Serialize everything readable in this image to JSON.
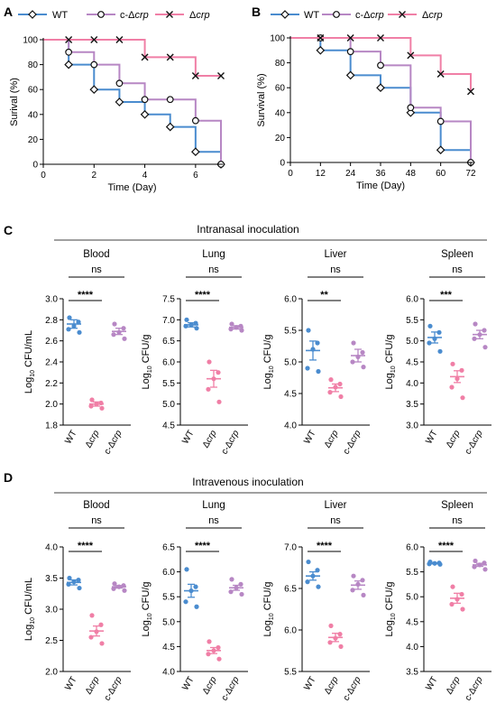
{
  "colors": {
    "WT": "#4a8ccf",
    "comp": "#b787c4",
    "crp": "#f07fa6"
  },
  "legend": {
    "wt": "WT",
    "comp": "c-Δ",
    "crp": "Δ",
    "crp_italic": "crp"
  },
  "panel_labels": {
    "A": "A",
    "B": "B",
    "C": "C",
    "D": "D"
  },
  "sections": {
    "C": "Intranasal inoculation",
    "D": "Intravenous inoculation"
  },
  "strains": {
    "wt": "WT",
    "crp_delta": "Δ",
    "comp_prefix": "c-Δ",
    "crp_italic": "crp"
  },
  "log_label": {
    "prefix": "Log",
    "sub": "10",
    "ml": " CFU/mL",
    "g": " CFU/g"
  },
  "chart_data": [
    {
      "id": "A",
      "type": "line",
      "step": true,
      "xlabel": "Time (Day)",
      "ylabel": "Surival (%)",
      "xlim": [
        0,
        7
      ],
      "ylim": [
        0,
        100
      ],
      "xticks": [
        0,
        2,
        4,
        6
      ],
      "yticks": [
        0,
        20,
        40,
        60,
        80,
        100
      ],
      "legend_position": "top",
      "series": [
        {
          "name": "WT",
          "color": "#4a8ccf",
          "marker": "diamond",
          "points": [
            [
              0,
              100
            ],
            [
              1,
              80
            ],
            [
              2,
              60
            ],
            [
              3,
              50
            ],
            [
              4,
              40
            ],
            [
              5,
              30
            ],
            [
              6,
              10
            ],
            [
              7,
              0
            ]
          ]
        },
        {
          "name": "c-Δcrp",
          "color": "#b787c4",
          "marker": "circle",
          "points": [
            [
              0,
              100
            ],
            [
              1,
              90
            ],
            [
              2,
              80
            ],
            [
              3,
              65
            ],
            [
              4,
              52
            ],
            [
              5,
              52
            ],
            [
              6,
              35
            ],
            [
              7,
              0
            ]
          ]
        },
        {
          "name": "Δcrp",
          "color": "#f07fa6",
          "marker": "x",
          "points": [
            [
              0,
              100
            ],
            [
              1,
              100
            ],
            [
              2,
              100
            ],
            [
              3,
              100
            ],
            [
              4,
              86
            ],
            [
              5,
              86
            ],
            [
              6,
              71
            ],
            [
              7,
              71
            ]
          ]
        }
      ]
    },
    {
      "id": "B",
      "type": "line",
      "step": true,
      "xlabel": "Time (Day)",
      "ylabel": "Survival (%)",
      "xlim": [
        0,
        72
      ],
      "ylim": [
        0,
        100
      ],
      "xticks": [
        0,
        12,
        24,
        36,
        48,
        60,
        72
      ],
      "yticks": [
        0,
        20,
        40,
        60,
        80,
        100
      ],
      "legend_position": "top",
      "series": [
        {
          "name": "WT",
          "color": "#4a8ccf",
          "marker": "diamond",
          "points": [
            [
              0,
              100
            ],
            [
              12,
              90
            ],
            [
              24,
              70
            ],
            [
              36,
              60
            ],
            [
              48,
              40
            ],
            [
              60,
              10
            ],
            [
              72,
              0
            ]
          ]
        },
        {
          "name": "c-Δcrp",
          "color": "#b787c4",
          "marker": "circle",
          "points": [
            [
              0,
              100
            ],
            [
              12,
              100
            ],
            [
              24,
              89
            ],
            [
              36,
              78
            ],
            [
              48,
              44
            ],
            [
              60,
              33
            ],
            [
              72,
              0
            ]
          ]
        },
        {
          "name": "Δcrp",
          "color": "#f07fa6",
          "marker": "x",
          "points": [
            [
              0,
              100
            ],
            [
              12,
              100
            ],
            [
              24,
              100
            ],
            [
              36,
              100
            ],
            [
              48,
              86
            ],
            [
              60,
              71
            ],
            [
              72,
              57
            ]
          ]
        }
      ]
    },
    {
      "id": "C-Blood",
      "type": "scatter",
      "title": "Blood",
      "ylabel": "Log10 CFU/mL",
      "ylim": [
        1.8,
        3.0
      ],
      "yticks": [
        1.8,
        2.0,
        2.2,
        2.4,
        2.6,
        2.8,
        3.0
      ],
      "categories": [
        "WT",
        "Δcrp",
        "c-Δcrp"
      ],
      "groups": [
        {
          "name": "WT",
          "mean": 2.76,
          "sem": 0.04,
          "points": [
            2.82,
            2.78,
            2.74,
            2.71,
            2.68
          ]
        },
        {
          "name": "Δcrp",
          "mean": 2.0,
          "sem": 0.02,
          "points": [
            2.04,
            2.01,
            2.0,
            1.98,
            1.96
          ]
        },
        {
          "name": "c-Δcrp",
          "mean": 2.69,
          "sem": 0.03,
          "points": [
            2.76,
            2.72,
            2.68,
            2.66,
            2.62
          ]
        }
      ],
      "annotations": [
        {
          "label": "****",
          "from": 0,
          "to": 1
        },
        {
          "label": "ns",
          "from": 0,
          "to": 2
        }
      ]
    },
    {
      "id": "C-Lung",
      "type": "scatter",
      "title": "Lung",
      "ylabel": "Log10 CFU/g",
      "ylim": [
        4.5,
        7.5
      ],
      "yticks": [
        4.5,
        5.0,
        5.5,
        6.0,
        6.5,
        7.0,
        7.5
      ],
      "categories": [
        "WT",
        "Δcrp",
        "c-Δcrp"
      ],
      "groups": [
        {
          "name": "WT",
          "mean": 6.88,
          "sem": 0.05,
          "points": [
            7.0,
            6.92,
            6.88,
            6.85,
            6.8
          ]
        },
        {
          "name": "Δcrp",
          "mean": 5.6,
          "sem": 0.2,
          "points": [
            6.0,
            5.75,
            5.6,
            5.35,
            5.05
          ]
        },
        {
          "name": "c-Δcrp",
          "mean": 6.82,
          "sem": 0.04,
          "points": [
            6.9,
            6.85,
            6.82,
            6.78,
            6.75
          ]
        }
      ],
      "annotations": [
        {
          "label": "****",
          "from": 0,
          "to": 1
        },
        {
          "label": "ns",
          "from": 0,
          "to": 2
        }
      ]
    },
    {
      "id": "C-Liver",
      "type": "scatter",
      "title": "Liver",
      "ylabel": "Log10 CFU/g",
      "ylim": [
        4.0,
        6.0
      ],
      "yticks": [
        4.0,
        4.5,
        5.0,
        5.5,
        6.0
      ],
      "categories": [
        "WT",
        "Δcrp",
        "c-Δcrp"
      ],
      "groups": [
        {
          "name": "WT",
          "mean": 5.18,
          "sem": 0.15,
          "points": [
            5.5,
            5.3,
            5.2,
            4.9,
            4.85
          ]
        },
        {
          "name": "Δcrp",
          "mean": 4.59,
          "sem": 0.06,
          "points": [
            4.72,
            4.65,
            4.6,
            4.52,
            4.45
          ]
        },
        {
          "name": "c-Δcrp",
          "mean": 5.1,
          "sem": 0.1,
          "points": [
            5.3,
            5.15,
            5.08,
            5.0,
            4.92
          ]
        }
      ],
      "annotations": [
        {
          "label": "**",
          "from": 0,
          "to": 1
        },
        {
          "label": "ns",
          "from": 0,
          "to": 2
        }
      ]
    },
    {
      "id": "C-Spleen",
      "type": "scatter",
      "title": "Spleen",
      "ylabel": "Log10 CFU/g",
      "ylim": [
        3.0,
        6.0
      ],
      "yticks": [
        3.0,
        3.5,
        4.0,
        4.5,
        5.0,
        5.5,
        6.0
      ],
      "categories": [
        "WT",
        "Δcrp",
        "c-Δcrp"
      ],
      "groups": [
        {
          "name": "WT",
          "mean": 5.08,
          "sem": 0.13,
          "points": [
            5.35,
            5.2,
            5.05,
            4.95,
            4.75
          ]
        },
        {
          "name": "Δcrp",
          "mean": 4.15,
          "sem": 0.14,
          "points": [
            4.45,
            4.3,
            4.1,
            3.9,
            3.65
          ]
        },
        {
          "name": "c-Δcrp",
          "mean": 5.15,
          "sem": 0.1,
          "points": [
            5.4,
            5.25,
            5.15,
            5.05,
            4.85
          ]
        }
      ],
      "annotations": [
        {
          "label": "***",
          "from": 0,
          "to": 1
        },
        {
          "label": "ns",
          "from": 0,
          "to": 2
        }
      ]
    },
    {
      "id": "D-Blood",
      "type": "scatter",
      "title": "Blood",
      "ylabel": "Log10 CFU/mL",
      "ylim": [
        2.0,
        4.0
      ],
      "yticks": [
        2.0,
        2.5,
        3.0,
        3.5,
        4.0
      ],
      "categories": [
        "WT",
        "Δcrp",
        "c-Δcrp"
      ],
      "groups": [
        {
          "name": "WT",
          "mean": 3.43,
          "sem": 0.04,
          "points": [
            3.5,
            3.47,
            3.44,
            3.4,
            3.34
          ]
        },
        {
          "name": "Δcrp",
          "mean": 2.65,
          "sem": 0.08,
          "points": [
            2.9,
            2.75,
            2.64,
            2.55,
            2.45
          ]
        },
        {
          "name": "c-Δcrp",
          "mean": 3.36,
          "sem": 0.02,
          "points": [
            3.41,
            3.38,
            3.36,
            3.33,
            3.3
          ]
        }
      ],
      "annotations": [
        {
          "label": "****",
          "from": 0,
          "to": 1
        },
        {
          "label": "ns",
          "from": 0,
          "to": 2
        }
      ]
    },
    {
      "id": "D-Lung",
      "type": "scatter",
      "title": "Lung",
      "ylabel": "Log10 CFU/g",
      "ylim": [
        4.0,
        6.5
      ],
      "yticks": [
        4.0,
        4.5,
        5.0,
        5.5,
        6.0,
        6.5
      ],
      "categories": [
        "WT",
        "Δcrp",
        "c-Δcrp"
      ],
      "groups": [
        {
          "name": "WT",
          "mean": 5.62,
          "sem": 0.13,
          "points": [
            6.05,
            5.7,
            5.62,
            5.4,
            5.3
          ]
        },
        {
          "name": "Δcrp",
          "mean": 4.42,
          "sem": 0.06,
          "points": [
            4.6,
            4.48,
            4.42,
            4.35,
            4.25
          ]
        },
        {
          "name": "c-Δcrp",
          "mean": 5.68,
          "sem": 0.05,
          "points": [
            5.85,
            5.75,
            5.68,
            5.6,
            5.55
          ]
        }
      ],
      "annotations": [
        {
          "label": "****",
          "from": 0,
          "to": 1
        },
        {
          "label": "ns",
          "from": 0,
          "to": 2
        }
      ]
    },
    {
      "id": "D-Liver",
      "type": "scatter",
      "title": "Liver",
      "ylabel": "Log10 CFU/g",
      "ylim": [
        5.5,
        7.0
      ],
      "yticks": [
        5.5,
        6.0,
        6.5,
        7.0
      ],
      "categories": [
        "WT",
        "Δcrp",
        "c-Δcrp"
      ],
      "groups": [
        {
          "name": "WT",
          "mean": 6.65,
          "sem": 0.05,
          "points": [
            6.82,
            6.72,
            6.65,
            6.58,
            6.52
          ]
        },
        {
          "name": "Δcrp",
          "mean": 5.91,
          "sem": 0.05,
          "points": [
            6.05,
            5.95,
            5.9,
            5.85,
            5.8
          ]
        },
        {
          "name": "c-Δcrp",
          "mean": 6.54,
          "sem": 0.05,
          "points": [
            6.65,
            6.6,
            6.55,
            6.48,
            6.42
          ]
        }
      ],
      "annotations": [
        {
          "label": "****",
          "from": 0,
          "to": 1
        },
        {
          "label": "ns",
          "from": 0,
          "to": 2
        }
      ]
    },
    {
      "id": "D-Spleen",
      "type": "scatter",
      "title": "Spleen",
      "ylabel": "Log10 CFU/g",
      "ylim": [
        3.5,
        6.0
      ],
      "yticks": [
        3.5,
        4.0,
        4.5,
        5.0,
        5.5,
        6.0
      ],
      "categories": [
        "WT",
        "Δcrp",
        "c-Δcrp"
      ],
      "groups": [
        {
          "name": "WT",
          "mean": 5.67,
          "sem": 0.01,
          "points": [
            5.7,
            5.68,
            5.67,
            5.66,
            5.65
          ]
        },
        {
          "name": "Δcrp",
          "mean": 4.97,
          "sem": 0.1,
          "points": [
            5.2,
            5.05,
            4.95,
            4.85,
            4.75
          ]
        },
        {
          "name": "c-Δcrp",
          "mean": 5.64,
          "sem": 0.03,
          "points": [
            5.72,
            5.68,
            5.64,
            5.6,
            5.55
          ]
        }
      ],
      "annotations": [
        {
          "label": "****",
          "from": 0,
          "to": 1
        },
        {
          "label": "ns",
          "from": 0,
          "to": 2
        }
      ]
    }
  ]
}
